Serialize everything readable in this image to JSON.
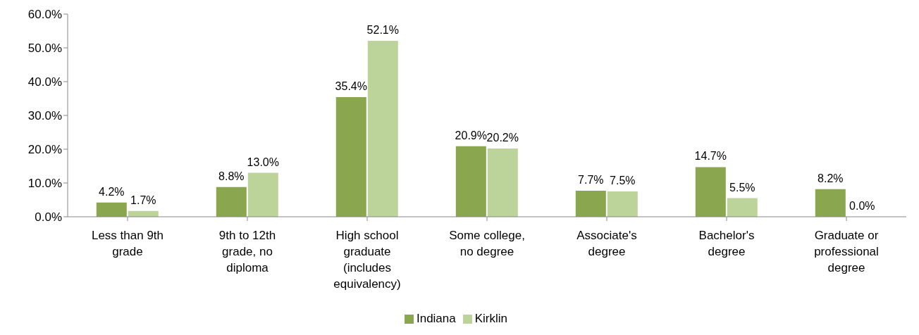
{
  "chart_data": {
    "type": "bar",
    "categories": [
      "Less than 9th grade",
      "9th to 12th grade, no diploma",
      "High school graduate (includes equivalency)",
      "Some college, no degree",
      "Associate's degree",
      "Bachelor's degree",
      "Graduate or professional degree"
    ],
    "series": [
      {
        "name": "Indiana",
        "color": "#8aa64e",
        "values": [
          4.2,
          8.8,
          35.4,
          20.9,
          7.7,
          14.7,
          8.2
        ],
        "value_labels": [
          "4.2%",
          "8.8%",
          "35.4%",
          "20.9%",
          "7.7%",
          "14.7%",
          "8.2%"
        ]
      },
      {
        "name": "Kirklin",
        "color": "#bcd39a",
        "values": [
          1.7,
          13.0,
          52.1,
          20.2,
          7.5,
          5.5,
          0.0
        ],
        "value_labels": [
          "1.7%",
          "13.0%",
          "52.1%",
          "20.2%",
          "7.5%",
          "5.5%",
          "0.0%"
        ]
      }
    ],
    "ylim": [
      0,
      60
    ],
    "yticks": [
      {
        "value": 0,
        "label": "0.0%"
      },
      {
        "value": 10,
        "label": "10.0%"
      },
      {
        "value": 20,
        "label": "20.0%"
      },
      {
        "value": 30,
        "label": "30.0%"
      },
      {
        "value": 40,
        "label": "40.0%"
      },
      {
        "value": 50,
        "label": "50.0%"
      },
      {
        "value": 60,
        "label": "60.0%"
      }
    ],
    "grid": false,
    "legend": "bottom"
  }
}
